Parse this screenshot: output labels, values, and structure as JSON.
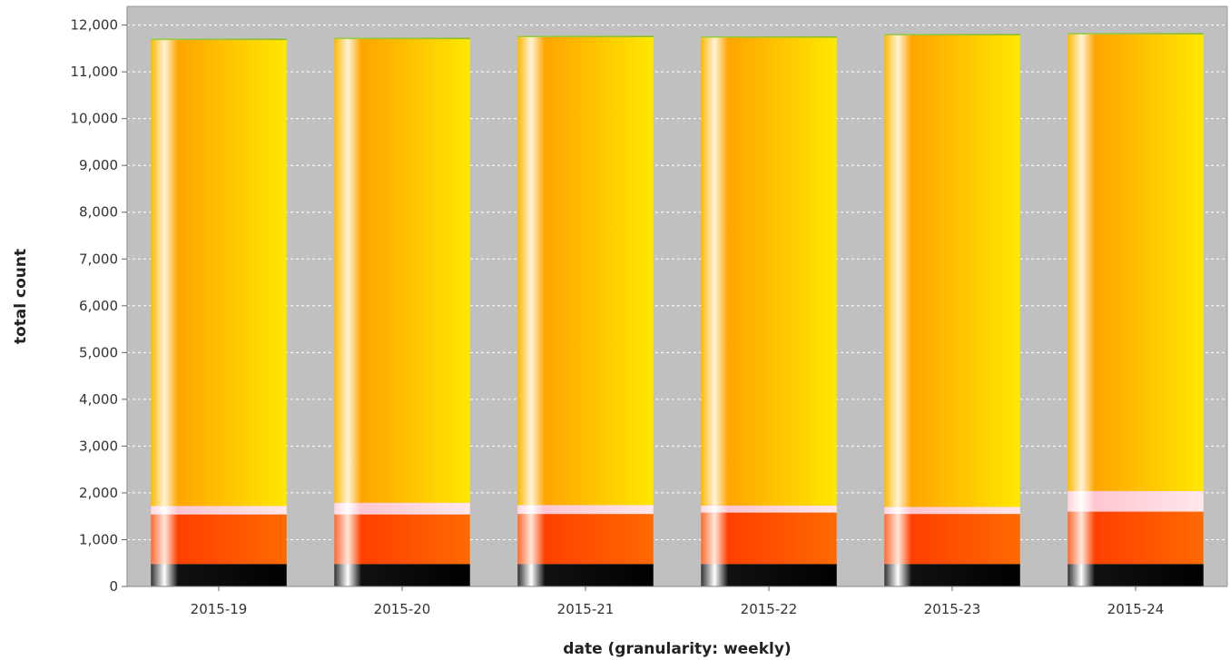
{
  "chart_data": {
    "type": "bar",
    "stacked": true,
    "title": "",
    "xlabel": "date (granularity: weekly)",
    "ylabel": "total count",
    "categories": [
      "2015-19",
      "2015-20",
      "2015-21",
      "2015-22",
      "2015-23",
      "2015-24"
    ],
    "ylim": [
      0,
      12400
    ],
    "yticks": [
      0,
      1000,
      2000,
      3000,
      4000,
      5000,
      6000,
      7000,
      8000,
      9000,
      10000,
      11000,
      12000
    ],
    "ytick_labels": [
      "0",
      "1,000",
      "2,000",
      "3,000",
      "4,000",
      "5,000",
      "6,000",
      "7,000",
      "8,000",
      "9,000",
      "10,000",
      "11,000",
      "12,000"
    ],
    "grid": true,
    "series": [
      {
        "values": [
          480,
          480,
          480,
          480,
          480,
          480
        ],
        "color": "#000000"
      },
      {
        "values": [
          1060,
          1060,
          1070,
          1100,
          1070,
          1120
        ],
        "color": "#ff4a00"
      },
      {
        "values": [
          180,
          250,
          190,
          150,
          150,
          440
        ],
        "color": "#ffc8d2"
      },
      {
        "values": [
          9960,
          9910,
          10000,
          10000,
          10080,
          9760
        ],
        "color": "#ffc400"
      },
      {
        "values": [
          30,
          30,
          30,
          30,
          30,
          30
        ],
        "color": "#88cc33"
      }
    ]
  }
}
